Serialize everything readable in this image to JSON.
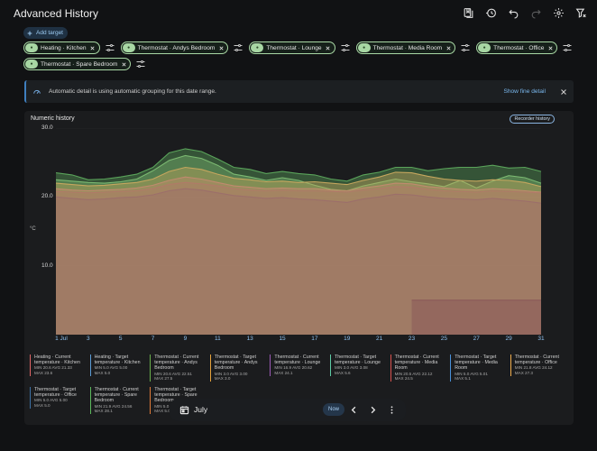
{
  "header": {
    "title": "Advanced History"
  },
  "toolbar": {
    "icons": [
      "bookmark-icon",
      "history-icon",
      "undo-icon",
      "redo-icon",
      "settings-icon",
      "clear-filter-icon"
    ]
  },
  "targets": {
    "add_label": "Add target",
    "chips": [
      {
        "label": "Heating · Kitchen"
      },
      {
        "label": "Thermostat · Andys Bedroom"
      },
      {
        "label": "Thermostat · Lounge"
      },
      {
        "label": "Thermostat · Media Room"
      },
      {
        "label": "Thermostat · Office"
      },
      {
        "label": "Thermostat · Spare Bedroom"
      }
    ]
  },
  "alert": {
    "text": "Automatic detail is using automatic grouping for this date range.",
    "link": "Show fine detail"
  },
  "card": {
    "title": "Numeric history",
    "recorder_button": "Recorder history",
    "y_unit": "°C"
  },
  "legend": [
    {
      "name": "Heating · Current temperature · Kitchen",
      "min": "MIN 20.6",
      "avg": "AVG 21.33",
      "max": "MAX 23.6",
      "color": "#e06666"
    },
    {
      "name": "Heating · Target temperature · Kitchen",
      "min": "MIN 5.0",
      "avg": "AVG 5.00",
      "max": "MAX 5.0",
      "color": "#5b9bd5"
    },
    {
      "name": "Thermostat · Current temperature · Andys Bedroom",
      "min": "MIN 20.6",
      "avg": "AVG 22.51",
      "max": "MAX 27.5",
      "color": "#6ab04c"
    },
    {
      "name": "Thermostat · Target temperature · Andys Bedroom",
      "min": "MIN 3.0",
      "avg": "AVG 3.00",
      "max": "MAX 3.0",
      "color": "#e6a23c"
    },
    {
      "name": "Thermostat · Current temperature · Lounge",
      "min": "MIN 16.9",
      "avg": "AVG 20.62",
      "max": "MAX 24.1",
      "color": "#9b59b6"
    },
    {
      "name": "Thermostat · Target temperature · Lounge",
      "min": "MIN 3.0",
      "avg": "AVG 3.08",
      "max": "MAX 5.6",
      "color": "#5dcaa5"
    },
    {
      "name": "Thermostat · Current temperature · Media Room",
      "min": "MIN 20.5",
      "avg": "AVG 22.12",
      "max": "MAX 24.5",
      "color": "#d9534f"
    },
    {
      "name": "Thermostat · Target temperature · Media Room",
      "min": "MIN 5.0",
      "avg": "AVG 5.01",
      "max": "MAX 5.1",
      "color": "#4a90d9"
    },
    {
      "name": "Thermostat · Current temperature · Office",
      "min": "MIN 21.8",
      "avg": "AVG 24.12",
      "max": "MAX 27.3",
      "color": "#f0ad4e"
    },
    {
      "name": "Thermostat · Target temperature · Office",
      "min": "MIN 5.0",
      "avg": "AVG 5.00",
      "max": "MAX 5.0",
      "color": "#3d6fa3"
    },
    {
      "name": "Thermostat · Current temperature · Spare Bedroom",
      "min": "MIN 21.9",
      "avg": "AVG 24.56",
      "max": "MAX 28.1",
      "color": "#5cb85c"
    },
    {
      "name": "Thermostat · Target temperature · Spare Bedroom",
      "min": "MIN 5.0",
      "avg": "AVG 5.00",
      "max": "MAX 5.0",
      "color": "#e07b39"
    }
  ],
  "chart_data": {
    "type": "area",
    "title": "Numeric history",
    "ylabel": "°C",
    "ylim": [
      0,
      30
    ],
    "yticks": [
      "30.0",
      "20.0",
      "10.0"
    ],
    "x_ticks": [
      "1 Jul",
      "3",
      "5",
      "7",
      "9",
      "11",
      "13",
      "15",
      "17",
      "19",
      "21",
      "23",
      "25",
      "27",
      "29",
      "31"
    ],
    "xlim": [
      1,
      31
    ],
    "series": [
      {
        "name": "Spare Bedroom",
        "color": "#5aa35a",
        "x": [
          1,
          2,
          3,
          4,
          5,
          6,
          7,
          8,
          9,
          10,
          11,
          12,
          13,
          14,
          15,
          16,
          17,
          18,
          19,
          20,
          21,
          22,
          23,
          24,
          25,
          26,
          27,
          28,
          29,
          30,
          31
        ],
        "values": [
          23.5,
          23.2,
          22.5,
          22.6,
          22.9,
          23.3,
          24.3,
          26.4,
          27.0,
          26.6,
          25.5,
          24.3,
          24.0,
          23.4,
          23.7,
          23.4,
          23.2,
          22.6,
          22.3,
          23.2,
          23.6,
          24.3,
          24.3,
          23.8,
          24.1,
          24.3,
          24.3,
          24.6,
          24.2,
          24.3,
          23.7
        ]
      },
      {
        "name": "Andys Bedroom",
        "color": "#7bb871",
        "x": [
          1,
          2,
          3,
          4,
          5,
          6,
          7,
          8,
          9,
          10,
          11,
          12,
          13,
          14,
          15,
          16,
          17,
          18,
          19,
          20,
          21,
          22,
          23,
          24,
          25,
          26,
          27,
          28,
          29,
          30,
          31
        ],
        "values": [
          22.5,
          22.3,
          22.1,
          22.0,
          22.2,
          22.6,
          23.8,
          25.3,
          26.0,
          25.6,
          24.6,
          23.3,
          22.9,
          22.4,
          22.8,
          22.4,
          21.7,
          21.1,
          20.9,
          21.6,
          22.1,
          22.6,
          22.2,
          21.9,
          21.5,
          22.4,
          21.3,
          22.3,
          23.1,
          22.8,
          22.0
        ]
      },
      {
        "name": "Office",
        "color": "#c5a65e",
        "x": [
          1,
          2,
          3,
          4,
          5,
          6,
          7,
          8,
          9,
          10,
          11,
          12,
          13,
          14,
          15,
          16,
          17,
          18,
          19,
          20,
          21,
          22,
          23,
          24,
          25,
          26,
          27,
          28,
          29,
          30,
          31
        ],
        "values": [
          22.0,
          21.8,
          21.6,
          21.7,
          21.9,
          22.1,
          22.6,
          23.7,
          24.3,
          24.0,
          23.3,
          22.7,
          22.5,
          22.2,
          22.3,
          22.1,
          22.2,
          22.0,
          21.8,
          22.4,
          22.9,
          23.6,
          23.5,
          23.0,
          22.6,
          22.4,
          22.3,
          22.5,
          22.4,
          22.1,
          21.5
        ]
      },
      {
        "name": "Media Room",
        "color": "#c08a6e",
        "x": [
          1,
          2,
          3,
          4,
          5,
          6,
          7,
          8,
          9,
          10,
          11,
          12,
          13,
          14,
          15,
          16,
          17,
          18,
          19,
          20,
          21,
          22,
          23,
          24,
          25,
          26,
          27,
          28,
          29,
          30,
          31
        ],
        "values": [
          21.2,
          21.0,
          20.9,
          21.0,
          21.1,
          21.3,
          21.7,
          22.4,
          22.9,
          22.6,
          22.1,
          21.6,
          21.4,
          21.2,
          21.3,
          21.2,
          21.2,
          21.0,
          20.9,
          21.3,
          21.6,
          22.0,
          21.9,
          21.5,
          21.3,
          21.1,
          21.0,
          21.2,
          21.1,
          20.9,
          20.7
        ]
      },
      {
        "name": "Kitchen",
        "color": "#b07a68",
        "x": [
          1,
          2,
          3,
          4,
          5,
          6,
          7,
          8,
          9,
          10,
          11,
          12,
          13,
          14,
          15,
          16,
          17,
          18,
          19,
          20,
          21,
          22,
          23,
          24,
          25,
          26,
          27,
          28,
          29,
          30,
          31
        ],
        "values": [
          20.8,
          20.7,
          20.6,
          20.7,
          20.8,
          20.9,
          21.2,
          21.8,
          22.1,
          21.9,
          21.6,
          21.2,
          21.0,
          20.9,
          21.0,
          20.9,
          20.9,
          20.8,
          20.7,
          21.0,
          21.2,
          21.5,
          21.4,
          21.1,
          20.9,
          20.8,
          20.7,
          20.9,
          20.8,
          20.7,
          20.6
        ]
      },
      {
        "name": "Lounge",
        "color": "#9c6f6a",
        "x": [
          1,
          2,
          3,
          4,
          5,
          6,
          7,
          8,
          9,
          10,
          11,
          12,
          13,
          14,
          15,
          16,
          17,
          18,
          19,
          20,
          21,
          22,
          23,
          24,
          25,
          26,
          27,
          28,
          29,
          30,
          31
        ],
        "values": [
          20.0,
          19.8,
          19.6,
          19.7,
          19.9,
          20.0,
          20.3,
          20.9,
          21.2,
          21.0,
          20.6,
          20.2,
          20.0,
          19.8,
          19.9,
          19.7,
          19.6,
          19.4,
          19.2,
          19.7,
          20.0,
          20.4,
          20.3,
          20.0,
          19.8,
          19.7,
          19.6,
          19.8,
          19.6,
          19.4,
          19.1
        ]
      },
      {
        "name": "Targets",
        "color": "#8a5a5a",
        "x": [
          23,
          31
        ],
        "values": [
          5.0,
          5.0
        ]
      }
    ]
  },
  "bottom": {
    "month": "July",
    "now_label": "Now"
  }
}
